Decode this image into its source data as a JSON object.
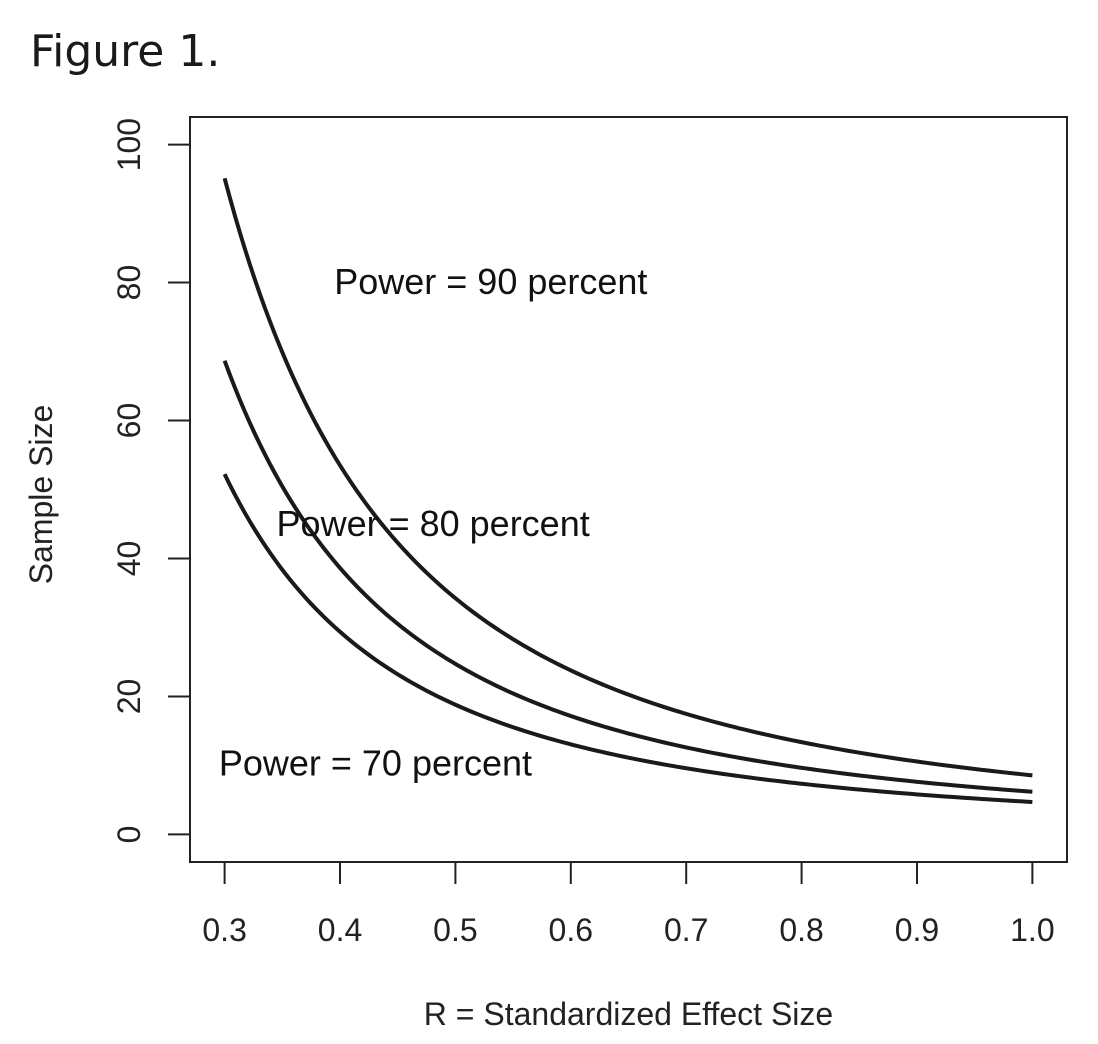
{
  "figure": {
    "title": "Figure 1."
  },
  "chart_data": {
    "type": "line",
    "xlabel": "R = Standardized Effect Size",
    "ylabel": "Sample Size",
    "xlim": [
      0.27,
      1.03
    ],
    "ylim": [
      -4,
      104
    ],
    "xticks": [
      0.3,
      0.4,
      0.5,
      0.6,
      0.7,
      0.8,
      0.9,
      1.0
    ],
    "xtick_labels": [
      "0.3",
      "0.4",
      "0.5",
      "0.6",
      "0.7",
      "0.8",
      "0.9",
      "1.0"
    ],
    "yticks": [
      0,
      20,
      40,
      60,
      80,
      100
    ],
    "ytick_labels": [
      "0",
      "20",
      "40",
      "60",
      "80",
      "100"
    ],
    "grid": false,
    "legend": "none",
    "line_color": "#1a1a1a",
    "series": [
      {
        "name": "Power = 90 percent",
        "coefficient": 8.56,
        "points": [
          [
            0.3,
            95.1
          ],
          [
            0.4,
            53.5
          ],
          [
            0.5,
            34.2
          ],
          [
            0.6,
            23.8
          ],
          [
            0.7,
            17.5
          ],
          [
            0.8,
            13.4
          ],
          [
            0.9,
            10.6
          ],
          [
            1.0,
            8.6
          ]
        ]
      },
      {
        "name": "Power = 80 percent",
        "coefficient": 6.18,
        "points": [
          [
            0.3,
            68.7
          ],
          [
            0.4,
            38.6
          ],
          [
            0.5,
            24.7
          ],
          [
            0.6,
            17.2
          ],
          [
            0.7,
            12.6
          ],
          [
            0.8,
            9.7
          ],
          [
            0.9,
            7.6
          ],
          [
            1.0,
            6.2
          ]
        ]
      },
      {
        "name": "Power = 70 percent",
        "coefficient": 4.7,
        "points": [
          [
            0.3,
            52.2
          ],
          [
            0.4,
            29.4
          ],
          [
            0.5,
            18.8
          ],
          [
            0.6,
            13.1
          ],
          [
            0.7,
            9.6
          ],
          [
            0.8,
            7.3
          ],
          [
            0.9,
            5.8
          ],
          [
            1.0,
            4.7
          ]
        ]
      }
    ],
    "annotations": [
      {
        "text": "Power = 90 percent",
        "x": 0.395,
        "y": 80.1
      },
      {
        "text": "Power = 80 percent",
        "x": 0.345,
        "y": 45.0
      },
      {
        "text": "Power = 70 percent",
        "x": 0.295,
        "y": 10.3
      }
    ]
  }
}
